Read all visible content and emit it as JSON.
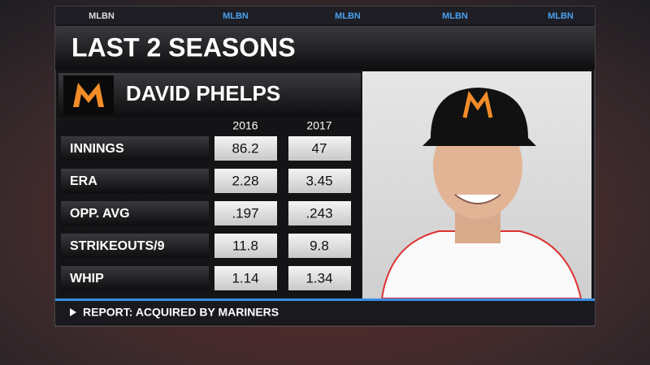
{
  "header": {
    "tabs": [
      "MLBN",
      "MLBN",
      "MLBN",
      "MLBN",
      "MLBN"
    ],
    "title": "LAST 2 SEASONS"
  },
  "player": {
    "name": "DAVID PHELPS"
  },
  "table": {
    "columns": [
      "2016",
      "2017"
    ],
    "rows": [
      [
        "INNINGS",
        "86.2",
        "47"
      ],
      [
        "ERA",
        "2.28",
        "3.45"
      ],
      [
        "OPP. AVG",
        ".197",
        ".243"
      ],
      [
        "STRIKEOUTS/9",
        "11.8",
        "9.8"
      ],
      [
        "WHIP",
        "1.14",
        "1.34"
      ]
    ]
  },
  "footer": {
    "text": "REPORT: ACQUIRED BY MARINERS"
  }
}
